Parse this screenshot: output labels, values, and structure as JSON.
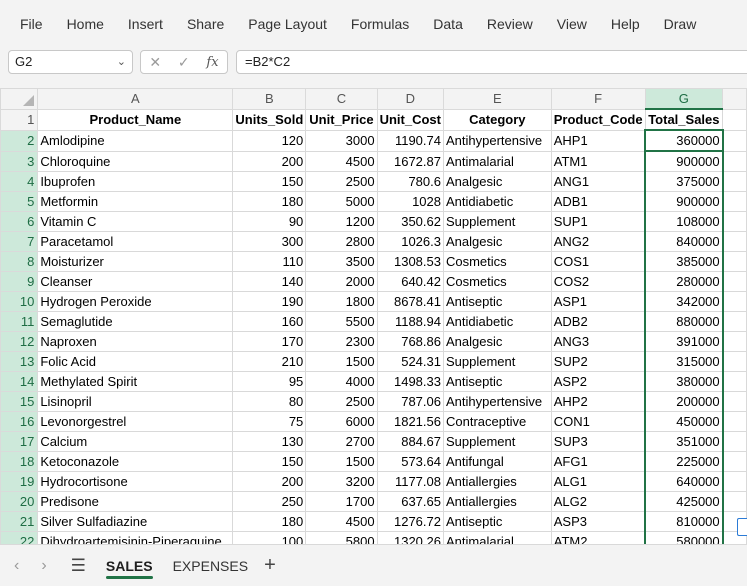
{
  "menu": [
    "File",
    "Home",
    "Insert",
    "Share",
    "Page Layout",
    "Formulas",
    "Data",
    "Review",
    "View",
    "Help",
    "Draw"
  ],
  "name_box": "G2",
  "formula": "=B2*C2",
  "columns": [
    "A",
    "B",
    "C",
    "D",
    "E",
    "F",
    "G"
  ],
  "selected_column": "G",
  "headers": [
    "Product_Name",
    "Units_Sold",
    "Unit_Price",
    "Unit_Cost",
    "Category",
    "Product_Code",
    "Total_Sales"
  ],
  "rows": [
    [
      "Amlodipine",
      "120",
      "3000",
      "1190.74",
      "Antihypertensive",
      "AHP1",
      "360000"
    ],
    [
      "Chloroquine",
      "200",
      "4500",
      "1672.87",
      "Antimalarial",
      "ATM1",
      "900000"
    ],
    [
      "Ibuprofen",
      "150",
      "2500",
      "780.6",
      "Analgesic",
      "ANG1",
      "375000"
    ],
    [
      "Metformin",
      "180",
      "5000",
      "1028",
      "Antidiabetic",
      "ADB1",
      "900000"
    ],
    [
      "Vitamin C",
      "90",
      "1200",
      "350.62",
      "Supplement",
      "SUP1",
      "108000"
    ],
    [
      "Paracetamol",
      "300",
      "2800",
      "1026.3",
      "Analgesic",
      "ANG2",
      "840000"
    ],
    [
      "Moisturizer",
      "110",
      "3500",
      "1308.53",
      "Cosmetics",
      "COS1",
      "385000"
    ],
    [
      "Cleanser",
      "140",
      "2000",
      "640.42",
      "Cosmetics",
      "COS2",
      "280000"
    ],
    [
      "Hydrogen Peroxide",
      "190",
      "1800",
      "8678.41",
      "Antiseptic",
      "ASP1",
      "342000"
    ],
    [
      "Semaglutide",
      "160",
      "5500",
      "1188.94",
      "Antidiabetic",
      "ADB2",
      "880000"
    ],
    [
      "Naproxen",
      "170",
      "2300",
      "768.86",
      "Analgesic",
      "ANG3",
      "391000"
    ],
    [
      "Folic Acid",
      "210",
      "1500",
      "524.31",
      "Supplement",
      "SUP2",
      "315000"
    ],
    [
      "Methylated Spirit",
      "95",
      "4000",
      "1498.33",
      "Antiseptic",
      "ASP2",
      "380000"
    ],
    [
      "Lisinopril",
      "80",
      "2500",
      "787.06",
      "Antihypertensive",
      "AHP2",
      "200000"
    ],
    [
      "Levonorgestrel",
      "75",
      "6000",
      "1821.56",
      "Contraceptive",
      "CON1",
      "450000"
    ],
    [
      "Calcium",
      "130",
      "2700",
      "884.67",
      "Supplement",
      "SUP3",
      "351000"
    ],
    [
      "Ketoconazole",
      "150",
      "1500",
      "573.64",
      "Antifungal",
      "AFG1",
      "225000"
    ],
    [
      "Hydrocortisone",
      "200",
      "3200",
      "1177.08",
      "Antiallergies",
      "ALG1",
      "640000"
    ],
    [
      "Predisone",
      "250",
      "1700",
      "637.65",
      "Antiallergies",
      "ALG2",
      "425000"
    ],
    [
      "Silver Sulfadiazine",
      "180",
      "4500",
      "1276.72",
      "Antiseptic",
      "ASP3",
      "810000"
    ],
    [
      "Dihydroartemisinin-Piperaquine",
      "100",
      "5800",
      "1320.26",
      "Antimalarial",
      "ATM2",
      "580000"
    ]
  ],
  "row_numbers": [
    "1",
    "2",
    "3",
    "4",
    "5",
    "6",
    "7",
    "8",
    "9",
    "10",
    "11",
    "12",
    "13",
    "14",
    "15",
    "16",
    "17",
    "18",
    "19",
    "20",
    "21",
    "22"
  ],
  "sheets": [
    "SALES",
    "EXPENSES"
  ],
  "active_sheet": "SALES",
  "accent_color": "#217346"
}
